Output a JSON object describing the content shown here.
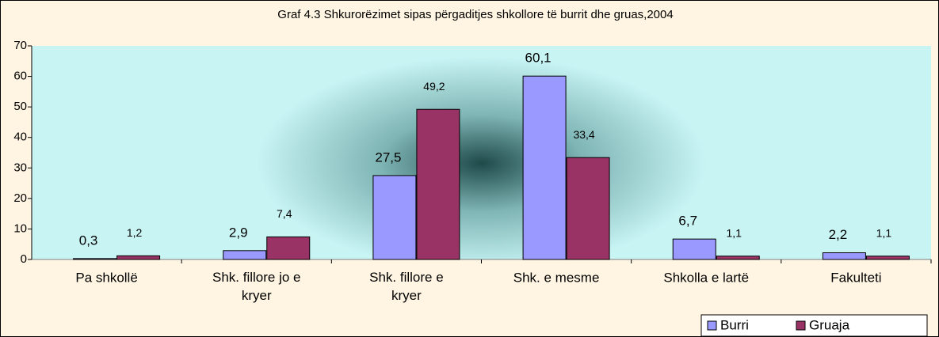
{
  "chart_data": {
    "type": "bar",
    "title": "Graf 4.3  Shkurorëzimet sipas përgaditjes shkollore të burrit dhe gruas,2004",
    "categories": [
      "Pa shkollë",
      "Shk. fillore jo e kryer",
      "Shk. fillore e kryer",
      "Shk. e mesme",
      "Shkolla e lartë",
      "Fakulteti"
    ],
    "series": [
      {
        "name": "Burri",
        "color": "#9999ff",
        "values": [
          0.3,
          2.9,
          27.5,
          60.1,
          6.7,
          2.2
        ],
        "value_labels": [
          "0,3",
          "2,9",
          "27,5",
          "60,1",
          "6,7",
          "2,2"
        ]
      },
      {
        "name": "Gruaja",
        "color": "#993366",
        "values": [
          1.2,
          7.4,
          49.2,
          33.4,
          1.1,
          1.1
        ],
        "value_labels": [
          "1,2",
          "7,4",
          "49,2",
          "33,4",
          "1,1",
          "1,1"
        ]
      }
    ],
    "ylim": [
      0,
      70
    ],
    "yticks": [
      0,
      10,
      20,
      30,
      40,
      50,
      60,
      70
    ],
    "legend": "bottom-right"
  }
}
